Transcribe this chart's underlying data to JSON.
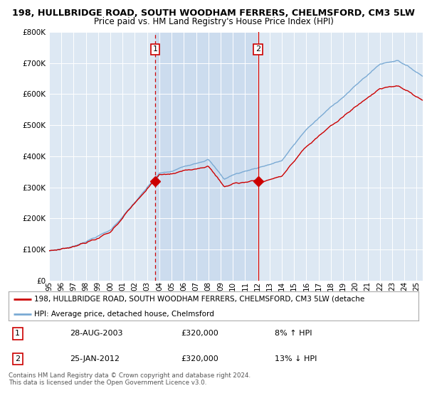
{
  "title1": "198, HULLBRIDGE ROAD, SOUTH WOODHAM FERRERS, CHELMSFORD, CM3 5LW",
  "title2": "Price paid vs. HM Land Registry's House Price Index (HPI)",
  "ylim": [
    0,
    800000
  ],
  "xlim_start": 1995.0,
  "xlim_end": 2025.5,
  "transaction1_x": 2003.65,
  "transaction1_y": 320000,
  "transaction2_x": 2012.07,
  "transaction2_y": 320000,
  "legend_line1": "198, HULLBRIDGE ROAD, SOUTH WOODHAM FERRERS, CHELMSFORD, CM3 5LW (detache",
  "legend_line2": "HPI: Average price, detached house, Chelmsford",
  "table_row1_num": "1",
  "table_row1_date": "28-AUG-2003",
  "table_row1_price": "£320,000",
  "table_row1_hpi": "8% ↑ HPI",
  "table_row2_num": "2",
  "table_row2_date": "25-JAN-2012",
  "table_row2_price": "£320,000",
  "table_row2_hpi": "13% ↓ HPI",
  "footer": "Contains HM Land Registry data © Crown copyright and database right 2024.\nThis data is licensed under the Open Government Licence v3.0.",
  "color_red": "#cc0000",
  "color_blue": "#7aaad4",
  "color_vline1": "#cc0000",
  "color_vline2": "#cc0000",
  "bg_color": "#ffffff",
  "plot_bg_color": "#dde8f3",
  "highlight_color": "#ccdcee"
}
